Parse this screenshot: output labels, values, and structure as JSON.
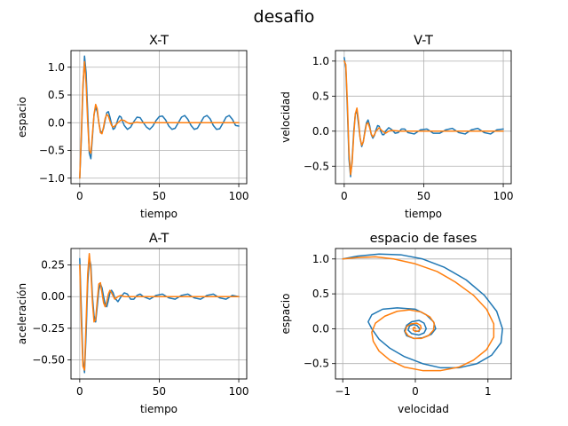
{
  "figure": {
    "title": "desafio"
  },
  "chart_data": [
    {
      "id": "xt",
      "type": "line",
      "title": "X-T",
      "xlabel": "tiempo",
      "ylabel": "espacio",
      "xlim": [
        -5.5,
        105
      ],
      "ylim": [
        -1.1,
        1.3
      ],
      "xticks": [
        0,
        50,
        100
      ],
      "yticks": [
        -1.0,
        -0.5,
        0.0,
        0.5,
        1.0
      ],
      "ytick_labels": [
        "−1.0",
        "−0.5",
        "0.0",
        "0.5",
        "1.0"
      ],
      "grid": true,
      "legend": "none",
      "series": [
        {
          "color": "#1f77b4",
          "x": [
            0,
            1,
            2,
            3,
            4,
            5,
            6,
            7,
            8,
            9,
            10,
            11,
            12,
            13,
            14,
            15,
            16,
            17,
            18,
            19,
            20,
            21,
            22,
            23,
            24,
            25,
            26,
            27,
            28,
            30,
            32,
            34,
            36,
            38,
            40,
            42,
            44,
            46,
            48,
            50,
            52,
            54,
            56,
            58,
            60,
            62,
            64,
            66,
            68,
            70,
            72,
            74,
            76,
            78,
            80,
            82,
            84,
            86,
            88,
            90,
            92,
            94,
            96,
            98,
            100
          ],
          "values": [
            -1.0,
            -0.3,
            0.6,
            1.2,
            0.9,
            0.2,
            -0.55,
            -0.65,
            -0.25,
            0.15,
            0.28,
            0.2,
            0.0,
            -0.15,
            -0.18,
            -0.1,
            0.05,
            0.18,
            0.2,
            0.1,
            -0.02,
            -0.12,
            -0.1,
            -0.03,
            0.06,
            0.12,
            0.1,
            0.02,
            -0.05,
            -0.12,
            -0.08,
            0.02,
            0.1,
            0.09,
            0.0,
            -0.08,
            -0.12,
            -0.06,
            0.04,
            0.11,
            0.12,
            0.05,
            -0.06,
            -0.12,
            -0.1,
            0.0,
            0.1,
            0.13,
            0.06,
            -0.05,
            -0.12,
            -0.1,
            0.0,
            0.1,
            0.13,
            0.07,
            -0.05,
            -0.12,
            -0.11,
            -0.01,
            0.1,
            0.13,
            0.06,
            -0.05,
            -0.06
          ]
        },
        {
          "color": "#ff7f0e",
          "x": [
            0,
            1,
            2,
            3,
            4,
            5,
            6,
            7,
            8,
            9,
            10,
            11,
            12,
            13,
            14,
            15,
            16,
            17,
            18,
            19,
            20,
            21,
            22,
            24,
            26,
            28,
            30,
            32,
            34,
            36,
            38,
            40,
            45,
            50,
            60,
            70,
            80,
            90,
            100
          ],
          "values": [
            -1.0,
            -0.2,
            0.7,
            1.1,
            0.7,
            0.0,
            -0.5,
            -0.55,
            -0.2,
            0.15,
            0.33,
            0.25,
            0.0,
            -0.18,
            -0.2,
            -0.07,
            0.08,
            0.15,
            0.12,
            0.03,
            -0.05,
            -0.08,
            -0.06,
            0.0,
            0.05,
            0.04,
            0.0,
            -0.02,
            0.0,
            0.01,
            0.0,
            0.0,
            0.0,
            0.0,
            0.0,
            0.0,
            0.0,
            0.0,
            0.0
          ]
        }
      ]
    },
    {
      "id": "vt",
      "type": "line",
      "title": "V-T",
      "xlabel": "tiempo",
      "ylabel": "velocidad",
      "xlim": [
        -5.5,
        105
      ],
      "ylim": [
        -0.75,
        1.15
      ],
      "xticks": [
        0,
        50,
        100
      ],
      "yticks": [
        -0.5,
        0.0,
        0.5,
        1.0
      ],
      "ytick_labels": [
        "−0.5",
        "0.0",
        "0.5",
        "1.0"
      ],
      "grid": true,
      "legend": "none",
      "series": [
        {
          "color": "#1f77b4",
          "x": [
            0,
            1,
            2,
            3,
            4,
            5,
            6,
            7,
            8,
            9,
            10,
            11,
            12,
            13,
            14,
            15,
            16,
            17,
            18,
            19,
            20,
            21,
            22,
            23,
            24,
            25,
            26,
            28,
            30,
            32,
            34,
            36,
            38,
            40,
            44,
            48,
            52,
            56,
            60,
            64,
            68,
            72,
            76,
            80,
            84,
            88,
            92,
            96,
            100
          ],
          "values": [
            1.05,
            0.9,
            0.3,
            -0.4,
            -0.65,
            -0.4,
            0.0,
            0.25,
            0.28,
            0.1,
            -0.1,
            -0.22,
            -0.15,
            0.0,
            0.12,
            0.16,
            0.08,
            -0.05,
            -0.1,
            -0.06,
            0.02,
            0.08,
            0.07,
            0.0,
            -0.05,
            -0.05,
            0.0,
            0.05,
            0.02,
            -0.03,
            -0.02,
            0.03,
            0.03,
            -0.02,
            -0.04,
            0.02,
            0.03,
            -0.03,
            -0.03,
            0.02,
            0.04,
            -0.02,
            -0.04,
            0.02,
            0.04,
            -0.02,
            -0.04,
            0.02,
            0.03
          ]
        },
        {
          "color": "#ff7f0e",
          "x": [
            0,
            1,
            2,
            3,
            4,
            5,
            6,
            7,
            8,
            9,
            10,
            11,
            12,
            13,
            14,
            15,
            16,
            17,
            18,
            19,
            20,
            22,
            24,
            26,
            28,
            30,
            35,
            40,
            50,
            60,
            70,
            80,
            90,
            100
          ],
          "values": [
            1.0,
            0.95,
            0.4,
            -0.3,
            -0.62,
            -0.45,
            -0.05,
            0.25,
            0.33,
            0.15,
            -0.1,
            -0.2,
            -0.15,
            -0.02,
            0.1,
            0.12,
            0.05,
            -0.04,
            -0.08,
            -0.05,
            0.0,
            0.05,
            0.0,
            -0.03,
            0.0,
            0.01,
            0.0,
            0.0,
            0.0,
            0.0,
            0.0,
            0.0,
            0.0,
            0.0
          ]
        }
      ]
    },
    {
      "id": "at",
      "type": "line",
      "title": "A-T",
      "xlabel": "tiempo",
      "ylabel": "aceleración",
      "xlim": [
        -5.5,
        105
      ],
      "ylim": [
        -0.65,
        0.38
      ],
      "xticks": [
        0,
        50,
        100
      ],
      "yticks": [
        -0.5,
        -0.25,
        0.0,
        0.25
      ],
      "ytick_labels": [
        "−0.50",
        "−0.25",
        "0.00",
        "0.25"
      ],
      "grid": true,
      "legend": "none",
      "series": [
        {
          "color": "#1f77b4",
          "x": [
            0,
            1,
            2,
            3,
            4,
            5,
            6,
            7,
            8,
            9,
            10,
            11,
            12,
            13,
            14,
            15,
            16,
            17,
            18,
            19,
            20,
            21,
            22,
            24,
            26,
            28,
            30,
            32,
            34,
            36,
            38,
            40,
            44,
            48,
            52,
            56,
            60,
            64,
            68,
            72,
            76,
            80,
            84,
            88,
            92,
            96,
            100
          ],
          "values": [
            0.3,
            -0.1,
            -0.5,
            -0.6,
            -0.3,
            0.1,
            0.3,
            0.25,
            0.0,
            -0.15,
            -0.2,
            -0.08,
            0.05,
            0.1,
            0.07,
            0.0,
            -0.06,
            -0.08,
            -0.03,
            0.03,
            0.05,
            0.03,
            -0.01,
            -0.04,
            0.0,
            0.03,
            0.02,
            -0.02,
            -0.02,
            0.01,
            0.02,
            0.0,
            -0.02,
            0.01,
            0.02,
            -0.01,
            -0.02,
            0.01,
            0.02,
            -0.01,
            -0.02,
            0.01,
            0.02,
            -0.01,
            -0.02,
            0.01,
            0.0
          ]
        },
        {
          "color": "#ff7f0e",
          "x": [
            0,
            1,
            2,
            3,
            4,
            5,
            6,
            7,
            8,
            9,
            10,
            11,
            12,
            13,
            14,
            15,
            16,
            17,
            18,
            19,
            20,
            22,
            24,
            26,
            28,
            30,
            35,
            40,
            50,
            60,
            70,
            80,
            90,
            100
          ],
          "values": [
            0.25,
            -0.2,
            -0.55,
            -0.58,
            -0.2,
            0.18,
            0.34,
            0.2,
            -0.05,
            -0.2,
            -0.18,
            -0.03,
            0.1,
            0.11,
            0.03,
            -0.05,
            -0.08,
            -0.04,
            0.02,
            0.05,
            0.03,
            -0.02,
            0.0,
            0.01,
            0.0,
            0.0,
            0.0,
            0.0,
            0.0,
            0.0,
            0.0,
            0.0,
            0.0,
            0.0
          ]
        }
      ]
    },
    {
      "id": "phase",
      "type": "line",
      "title": "espacio de fases",
      "xlabel": "velocidad",
      "ylabel": "espacio",
      "xlim": [
        -1.1,
        1.32
      ],
      "ylim": [
        -0.72,
        1.15
      ],
      "xticks": [
        -1,
        0,
        1
      ],
      "xtick_labels": [
        "−1",
        "0",
        "1"
      ],
      "yticks": [
        -0.5,
        0.0,
        0.5,
        1.0
      ],
      "ytick_labels": [
        "−0.5",
        "0.0",
        "0.5",
        "1.0"
      ],
      "grid": true,
      "legend": "none",
      "series": [
        {
          "color": "#1f77b4",
          "x": [
            -1.0,
            -0.8,
            -0.5,
            -0.2,
            0.1,
            0.4,
            0.7,
            0.95,
            1.12,
            1.2,
            1.18,
            1.05,
            0.85,
            0.6,
            0.35,
            0.1,
            -0.15,
            -0.35,
            -0.5,
            -0.6,
            -0.65,
            -0.6,
            -0.45,
            -0.25,
            0.0,
            0.15,
            0.25,
            0.28,
            0.22,
            0.1,
            -0.02,
            -0.12,
            -0.15,
            -0.12,
            -0.05,
            0.05,
            0.12,
            0.15,
            0.12,
            0.05,
            -0.05,
            -0.1,
            -0.08,
            -0.03,
            0.02,
            0.06,
            0.05,
            0.0
          ],
          "y": [
            1.0,
            1.04,
            1.07,
            1.06,
            1.0,
            0.88,
            0.7,
            0.48,
            0.25,
            0.0,
            -0.2,
            -0.38,
            -0.5,
            -0.56,
            -0.56,
            -0.5,
            -0.4,
            -0.28,
            -0.15,
            0.0,
            0.1,
            0.2,
            0.28,
            0.3,
            0.28,
            0.2,
            0.1,
            0.0,
            -0.08,
            -0.13,
            -0.14,
            -0.1,
            -0.03,
            0.05,
            0.1,
            0.12,
            0.08,
            0.0,
            -0.06,
            -0.09,
            -0.07,
            -0.02,
            0.04,
            0.06,
            0.05,
            0.0,
            -0.04,
            -0.03
          ]
        },
        {
          "color": "#ff7f0e",
          "x": [
            -1.0,
            -0.8,
            -0.55,
            -0.3,
            0.0,
            0.3,
            0.55,
            0.8,
            0.98,
            1.08,
            1.08,
            0.98,
            0.8,
            0.6,
            0.35,
            0.1,
            -0.15,
            -0.35,
            -0.5,
            -0.58,
            -0.6,
            -0.55,
            -0.42,
            -0.25,
            -0.08,
            0.08,
            0.2,
            0.26,
            0.25,
            0.18,
            0.08,
            -0.02,
            -0.1,
            -0.14,
            -0.12,
            -0.06,
            0.02,
            0.07,
            0.08,
            0.05,
            0.0,
            -0.03,
            -0.03,
            -0.01,
            0.0
          ],
          "y": [
            1.0,
            1.02,
            1.03,
            1.0,
            0.93,
            0.82,
            0.67,
            0.48,
            0.28,
            0.07,
            -0.12,
            -0.3,
            -0.45,
            -0.55,
            -0.6,
            -0.6,
            -0.55,
            -0.45,
            -0.32,
            -0.18,
            -0.05,
            0.08,
            0.18,
            0.25,
            0.27,
            0.24,
            0.17,
            0.08,
            -0.02,
            -0.1,
            -0.14,
            -0.14,
            -0.1,
            -0.04,
            0.03,
            0.07,
            0.08,
            0.05,
            0.01,
            -0.03,
            -0.04,
            -0.02,
            0.01,
            0.02,
            0.0
          ]
        }
      ]
    }
  ]
}
